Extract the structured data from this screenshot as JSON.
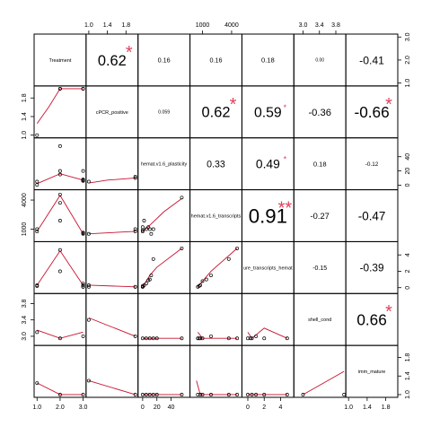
{
  "chart_data": {
    "type": "scatter-matrix",
    "variables": [
      "Treatment",
      "cPCR_positive",
      "hemat.v1.6_plasticity",
      "hemat.v1.6_transcripts",
      "scaled_transcripts_hemat",
      "shell_cond",
      "imm_mature"
    ],
    "variable_labels": [
      "Treatment",
      "cPCR_positive",
      "hemat.v1.6_plasticity",
      "hemat.v1.6_transcripts",
      "ure_transcripts_hemat",
      "shell_cond",
      "imm_mature"
    ],
    "ranges": [
      [
        0.95,
        3.05
      ],
      [
        0.98,
        2.02
      ],
      [
        -4,
        64
      ],
      [
        600,
        6000
      ],
      [
        -0.5,
        5.4
      ],
      [
        2.82,
        4.0
      ],
      [
        0.98,
        2.02
      ]
    ],
    "scale": [
      "linear",
      "linear",
      "linear",
      "log",
      "linear",
      "linear",
      "linear"
    ],
    "axis_ticks": {
      "bottom": [
        {
          "col": 0,
          "values": [
            1.0,
            2.0,
            3.0
          ],
          "labels": [
            "1.0",
            "2.0",
            "3.0"
          ]
        },
        {
          "col": 2,
          "values": [
            0,
            20,
            40
          ],
          "labels": [
            "0",
            "20",
            "40"
          ]
        },
        {
          "col": 4,
          "values": [
            0,
            2,
            4
          ],
          "labels": [
            "0",
            "2",
            "4"
          ]
        },
        {
          "col": 6,
          "values": [
            1.0,
            1.4,
            1.8
          ],
          "labels": [
            "1.0",
            "1.4",
            "1.8"
          ]
        }
      ],
      "top": [
        {
          "col": 1,
          "values": [
            1.0,
            1.4,
            1.8
          ],
          "labels": [
            "1.0",
            "1.4",
            "1.8"
          ]
        },
        {
          "col": 3,
          "values": [
            1000,
            4000
          ],
          "labels": [
            "1000",
            "4000"
          ]
        },
        {
          "col": 5,
          "values": [
            3.0,
            3.4,
            3.8
          ],
          "labels": [
            "3.0",
            "3.4",
            "3.8"
          ]
        }
      ],
      "left": [
        {
          "row": 1,
          "values": [
            1.0,
            1.4,
            1.8
          ],
          "labels": [
            "1.0",
            "1.4",
            "1.8"
          ]
        },
        {
          "row": 3,
          "values": [
            1000,
            4000
          ],
          "labels": [
            "1000",
            "4000"
          ]
        },
        {
          "row": 5,
          "values": [
            3.0,
            3.4,
            3.8
          ],
          "labels": [
            "3.0",
            "3.4",
            "3.8"
          ]
        }
      ],
      "right": [
        {
          "row": 0,
          "values": [
            1.0,
            2.0,
            3.0
          ],
          "labels": [
            "1.0",
            "2.0",
            "3.0"
          ]
        },
        {
          "row": 2,
          "values": [
            0,
            20,
            40
          ],
          "labels": [
            "0",
            "20",
            "40"
          ]
        },
        {
          "row": 4,
          "values": [
            0,
            2,
            4
          ],
          "labels": [
            "0",
            "2",
            "4"
          ]
        },
        {
          "row": 6,
          "values": [
            1.0,
            1.4,
            1.8
          ],
          "labels": [
            "1.0",
            "1.4",
            "1.8"
          ]
        }
      ]
    },
    "correlations": [
      {
        "row": 0,
        "col": 1,
        "text": "0.62",
        "value": 0.62,
        "stars": "*"
      },
      {
        "row": 0,
        "col": 2,
        "text": "0.16",
        "value": 0.16,
        "stars": ""
      },
      {
        "row": 0,
        "col": 3,
        "text": "0.16",
        "value": 0.16,
        "stars": ""
      },
      {
        "row": 0,
        "col": 4,
        "text": "0.18",
        "value": 0.18,
        "stars": ""
      },
      {
        "row": 0,
        "col": 5,
        "text": "0.00",
        "value": 0.0,
        "stars": ""
      },
      {
        "row": 0,
        "col": 6,
        "text": "-0.41",
        "value": -0.41,
        "stars": ""
      },
      {
        "row": 1,
        "col": 2,
        "text": "0.059",
        "value": 0.059,
        "stars": ""
      },
      {
        "row": 1,
        "col": 3,
        "text": "0.62",
        "value": 0.62,
        "stars": "*"
      },
      {
        "row": 1,
        "col": 4,
        "text": "0.59",
        "value": 0.59,
        "stars": "*"
      },
      {
        "row": 1,
        "col": 5,
        "text": "-0.36",
        "value": -0.36,
        "stars": ""
      },
      {
        "row": 1,
        "col": 6,
        "text": "-0.66",
        "value": -0.66,
        "stars": "*"
      },
      {
        "row": 2,
        "col": 3,
        "text": "0.33",
        "value": 0.33,
        "stars": ""
      },
      {
        "row": 2,
        "col": 4,
        "text": "0.49",
        "value": 0.49,
        "stars": "*"
      },
      {
        "row": 2,
        "col": 5,
        "text": "0.18",
        "value": 0.18,
        "stars": ""
      },
      {
        "row": 2,
        "col": 6,
        "text": "-0.12",
        "value": -0.12,
        "stars": ""
      },
      {
        "row": 3,
        "col": 4,
        "text": "0.91",
        "value": 0.91,
        "stars": "**"
      },
      {
        "row": 3,
        "col": 5,
        "text": "-0.27",
        "value": -0.27,
        "stars": ""
      },
      {
        "row": 3,
        "col": 6,
        "text": "-0.47",
        "value": -0.47,
        "stars": ""
      },
      {
        "row": 4,
        "col": 5,
        "text": "-0.15",
        "value": -0.15,
        "stars": ""
      },
      {
        "row": 4,
        "col": 6,
        "text": "-0.39",
        "value": -0.39,
        "stars": ""
      },
      {
        "row": 5,
        "col": 6,
        "text": "0.66",
        "value": 0.66,
        "stars": "*"
      }
    ],
    "scatter": [
      {
        "row": 1,
        "col": 0,
        "points": [
          [
            1,
            1
          ],
          [
            2,
            2
          ],
          [
            2,
            2
          ],
          [
            3,
            2
          ],
          [
            3,
            2
          ]
        ],
        "smooth": [
          [
            1,
            1.25
          ],
          [
            1.5,
            1.6
          ],
          [
            2,
            2
          ],
          [
            3,
            2
          ]
        ]
      },
      {
        "row": 2,
        "col": 0,
        "points": [
          [
            1,
            0.5
          ],
          [
            1,
            5
          ],
          [
            2,
            55
          ],
          [
            2,
            20
          ],
          [
            2,
            15
          ],
          [
            3,
            20
          ],
          [
            3,
            8
          ],
          [
            3,
            7
          ],
          [
            3,
            6
          ],
          [
            3,
            6
          ]
        ],
        "smooth": [
          [
            1,
            2
          ],
          [
            2,
            16
          ],
          [
            3,
            7
          ]
        ]
      },
      {
        "row": 3,
        "col": 0,
        "points": [
          [
            1,
            900
          ],
          [
            1,
            1000
          ],
          [
            2,
            5200
          ],
          [
            2,
            1500
          ],
          [
            2,
            3500
          ],
          [
            3,
            800
          ],
          [
            3,
            850
          ],
          [
            3,
            820
          ]
        ],
        "smooth": [
          [
            1,
            900
          ],
          [
            2,
            5000
          ],
          [
            3,
            800
          ]
        ]
      },
      {
        "row": 4,
        "col": 0,
        "points": [
          [
            1,
            0.3
          ],
          [
            1,
            0.2
          ],
          [
            2,
            2.0
          ],
          [
            2,
            4.6
          ],
          [
            3,
            0.5
          ],
          [
            3,
            0.3
          ],
          [
            3,
            0.1
          ],
          [
            3,
            0.1
          ]
        ],
        "smooth": [
          [
            1,
            0.3
          ],
          [
            2,
            4.5
          ],
          [
            3,
            0.3
          ]
        ]
      },
      {
        "row": 5,
        "col": 0,
        "points": [
          [
            1,
            3.1
          ],
          [
            2,
            2.95
          ],
          [
            3,
            3.0
          ]
        ],
        "smooth": [
          [
            1,
            3.15
          ],
          [
            2,
            2.95
          ],
          [
            3,
            3.1
          ]
        ]
      },
      {
        "row": 6,
        "col": 0,
        "points": [
          [
            1,
            1.25
          ],
          [
            2,
            1.0
          ],
          [
            3,
            1.0
          ]
        ],
        "smooth": [
          [
            1,
            1.25
          ],
          [
            2,
            1.0
          ],
          [
            3,
            1.0
          ]
        ]
      },
      {
        "row": 2,
        "col": 1,
        "points": [
          [
            1,
            5
          ],
          [
            2,
            12
          ],
          [
            2,
            10
          ]
        ],
        "smooth": [
          [
            1,
            3
          ],
          [
            1.4,
            7
          ],
          [
            2,
            10
          ]
        ]
      },
      {
        "row": 3,
        "col": 1,
        "points": [
          [
            1,
            800
          ],
          [
            2,
            900
          ],
          [
            2,
            1000
          ]
        ],
        "smooth": [
          [
            1,
            800
          ],
          [
            2,
            900
          ]
        ]
      },
      {
        "row": 4,
        "col": 1,
        "points": [
          [
            1,
            0.3
          ],
          [
            1,
            0.1
          ],
          [
            2,
            0.1
          ],
          [
            2,
            0.1
          ]
        ],
        "smooth": [
          [
            1,
            0.3
          ],
          [
            2,
            0.1
          ]
        ]
      },
      {
        "row": 5,
        "col": 1,
        "points": [
          [
            1,
            3.4
          ],
          [
            2,
            3.0
          ]
        ],
        "smooth": [
          [
            1,
            3.45
          ],
          [
            2,
            3.0
          ]
        ]
      },
      {
        "row": 6,
        "col": 1,
        "points": [
          [
            1,
            1.3
          ],
          [
            2,
            1.0
          ]
        ],
        "smooth": [
          [
            1,
            1.3
          ],
          [
            2,
            1.0
          ]
        ]
      },
      {
        "row": 3,
        "col": 2,
        "points": [
          [
            0,
            900
          ],
          [
            0,
            950
          ],
          [
            0,
            1100
          ],
          [
            2,
            1500
          ],
          [
            5,
            1000
          ],
          [
            8,
            1100
          ],
          [
            10,
            1000
          ],
          [
            12,
            800
          ],
          [
            15,
            1000
          ],
          [
            55,
            4500
          ]
        ],
        "smooth": [
          [
            0,
            900
          ],
          [
            10,
            1200
          ],
          [
            30,
            2300
          ],
          [
            55,
            4300
          ]
        ]
      },
      {
        "row": 4,
        "col": 2,
        "points": [
          [
            0,
            0.1
          ],
          [
            0,
            0.1
          ],
          [
            0,
            0.2
          ],
          [
            2,
            0.3
          ],
          [
            5,
            0.5
          ],
          [
            8,
            0.9
          ],
          [
            10,
            1.0
          ],
          [
            12,
            1.5
          ],
          [
            15,
            3.5
          ],
          [
            55,
            4.8
          ]
        ],
        "smooth": [
          [
            0,
            0.1
          ],
          [
            10,
            1.5
          ],
          [
            20,
            2.5
          ],
          [
            55,
            4.8
          ]
        ]
      },
      {
        "row": 5,
        "col": 2,
        "points": [
          [
            0,
            2.95
          ],
          [
            5,
            2.95
          ],
          [
            10,
            2.95
          ],
          [
            15,
            2.95
          ],
          [
            20,
            2.95
          ],
          [
            55,
            2.95
          ]
        ],
        "smooth": [
          [
            0,
            2.95
          ],
          [
            55,
            2.95
          ]
        ]
      },
      {
        "row": 6,
        "col": 2,
        "points": [
          [
            0,
            1.0
          ],
          [
            5,
            1.0
          ],
          [
            10,
            1.0
          ],
          [
            15,
            1.0
          ],
          [
            20,
            1.0
          ],
          [
            55,
            1.0
          ]
        ],
        "smooth": [
          [
            0,
            1.0
          ],
          [
            55,
            1.0
          ]
        ]
      },
      {
        "row": 4,
        "col": 3,
        "points": [
          [
            800,
            0.1
          ],
          [
            850,
            0.2
          ],
          [
            900,
            0.3
          ],
          [
            1000,
            0.8
          ],
          [
            1200,
            1.0
          ],
          [
            1500,
            1.5
          ],
          [
            3500,
            3.5
          ],
          [
            5200,
            4.8
          ]
        ],
        "smooth": [
          [
            800,
            0.1
          ],
          [
            1500,
            2.0
          ],
          [
            5200,
            4.8
          ]
        ]
      },
      {
        "row": 5,
        "col": 3,
        "points": [
          [
            800,
            2.95
          ],
          [
            850,
            2.95
          ],
          [
            900,
            2.95
          ],
          [
            1000,
            2.95
          ],
          [
            1500,
            3.0
          ],
          [
            3500,
            2.95
          ],
          [
            5200,
            2.95
          ]
        ],
        "smooth": [
          [
            800,
            3.1
          ],
          [
            1000,
            2.95
          ],
          [
            5200,
            2.95
          ]
        ]
      },
      {
        "row": 6,
        "col": 3,
        "points": [
          [
            800,
            1.0
          ],
          [
            900,
            1.0
          ],
          [
            1000,
            1.0
          ],
          [
            1500,
            1.0
          ],
          [
            3500,
            1.0
          ],
          [
            5200,
            1.0
          ]
        ],
        "smooth": [
          [
            750,
            1.3
          ],
          [
            900,
            1.0
          ],
          [
            5200,
            1.0
          ]
        ]
      },
      {
        "row": 5,
        "col": 4,
        "points": [
          [
            0,
            2.95
          ],
          [
            0.3,
            2.95
          ],
          [
            0.5,
            2.95
          ],
          [
            1.0,
            3.0
          ],
          [
            2.0,
            2.95
          ],
          [
            4.8,
            2.95
          ]
        ],
        "smooth": [
          [
            0,
            3.1
          ],
          [
            0.5,
            2.95
          ],
          [
            2,
            3.2
          ],
          [
            4.8,
            2.95
          ]
        ]
      },
      {
        "row": 6,
        "col": 4,
        "points": [
          [
            0,
            1.0
          ],
          [
            0.5,
            1.0
          ],
          [
            1.0,
            1.0
          ],
          [
            2.0,
            1.0
          ],
          [
            4.8,
            1.0
          ]
        ],
        "smooth": [
          [
            0,
            1.0
          ],
          [
            4.8,
            1.0
          ]
        ]
      },
      {
        "row": 6,
        "col": 5,
        "points": [
          [
            3.0,
            1.0
          ],
          [
            4.0,
            1.0
          ]
        ],
        "smooth": [
          [
            3.0,
            1.0
          ],
          [
            4.0,
            1.5
          ]
        ]
      }
    ],
    "colors": {
      "points": "#000000",
      "smooth": "#c8102e",
      "stars": "#e0405a",
      "border": "#000000"
    }
  }
}
